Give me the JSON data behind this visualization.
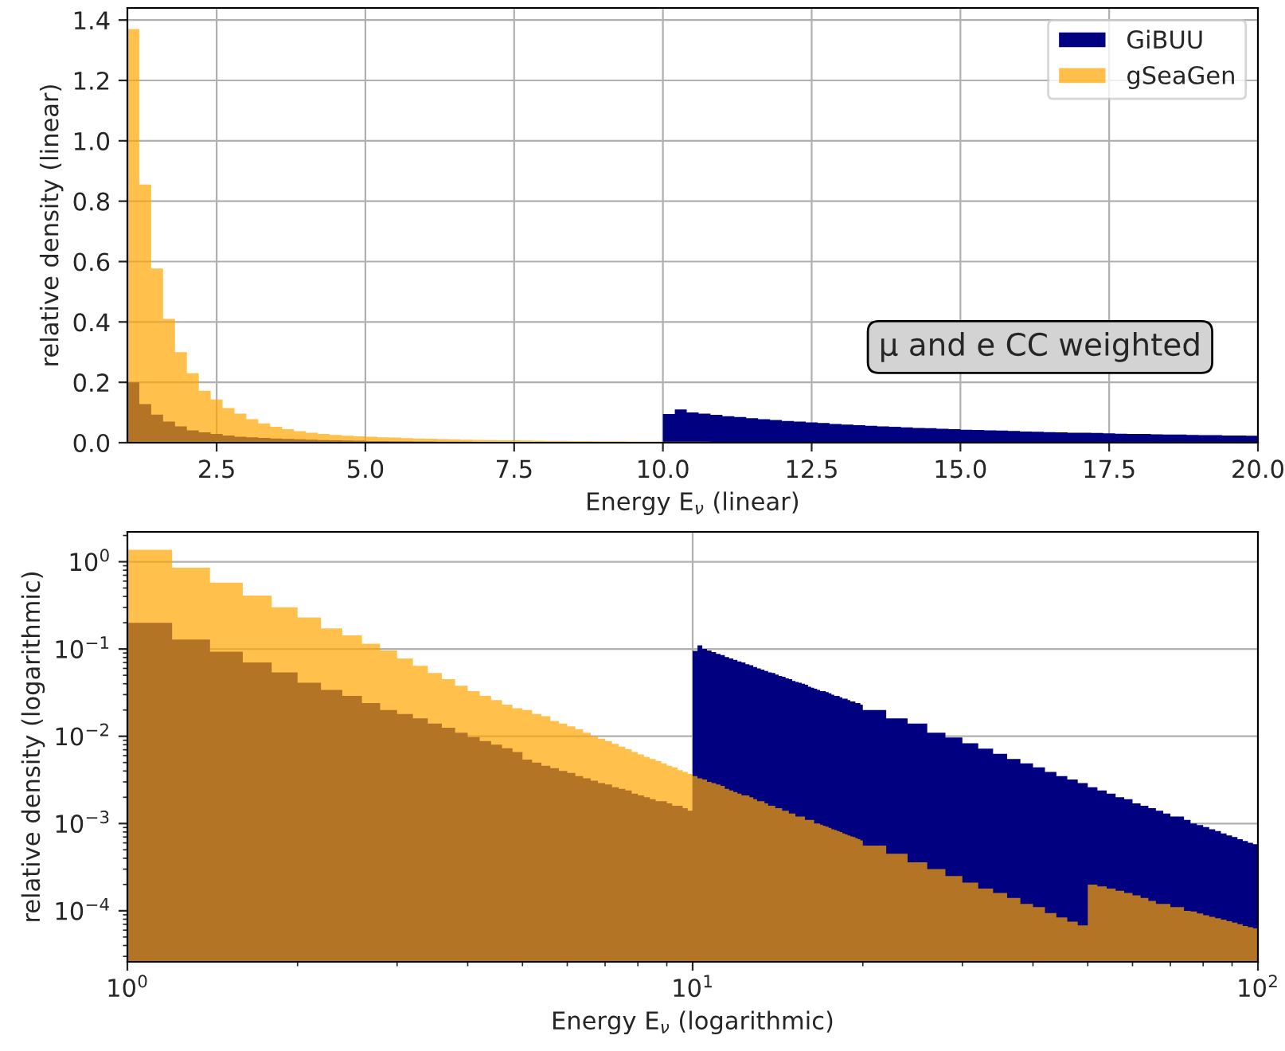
{
  "chart_data": [
    {
      "type": "histogram",
      "xlabel": "Energy E$_{ν}$ (linear)",
      "ylabel": "relative density (linear)",
      "annotations": [
        "μ and e CC weighted"
      ],
      "xlim": [
        1,
        20
      ],
      "ylim": [
        0,
        1.44
      ],
      "xticks": [
        {
          "value": 2.5,
          "label": "2.5"
        },
        {
          "value": 5,
          "label": "5.0"
        },
        {
          "value": 7.5,
          "label": "7.5"
        },
        {
          "value": 10,
          "label": "10.0"
        },
        {
          "value": 12.5,
          "label": "12.5"
        },
        {
          "value": 15,
          "label": "15.0"
        },
        {
          "value": 17.5,
          "label": "17.5"
        },
        {
          "value": 20,
          "label": "20.0"
        }
      ],
      "yticks": [
        {
          "value": 0,
          "label": "0.0"
        },
        {
          "value": 0.2,
          "label": "0.2"
        },
        {
          "value": 0.4,
          "label": "0.4"
        },
        {
          "value": 0.6,
          "label": "0.6"
        },
        {
          "value": 0.8,
          "label": "0.8"
        },
        {
          "value": 1,
          "label": "1.0"
        },
        {
          "value": 1.2,
          "label": "1.2"
        },
        {
          "value": 1.4,
          "label": "1.4"
        }
      ],
      "grid": true,
      "legend": "top right",
      "bins": [
        1.0,
        1.2,
        1.4,
        1.6,
        1.8,
        2.0,
        2.2,
        2.4,
        2.6,
        2.8,
        3.0,
        3.2,
        3.4,
        3.6,
        3.8,
        4.0,
        4.2,
        4.4,
        4.6,
        4.8,
        5.0,
        5.2,
        5.4,
        5.6,
        5.8,
        6.0,
        6.2,
        6.4,
        6.6,
        6.8,
        7.0,
        7.2,
        7.4,
        7.6,
        7.8,
        8.0,
        8.2,
        8.4,
        8.6,
        8.8,
        9.0,
        9.2,
        9.4,
        9.6,
        9.8,
        10.0,
        10.2,
        10.4,
        10.6,
        10.8,
        11.0,
        11.2,
        11.4,
        11.6,
        11.8,
        12.0,
        12.2,
        12.4,
        12.6,
        12.8,
        13.0,
        13.2,
        13.4,
        13.6,
        13.8,
        14.0,
        14.2,
        14.4,
        14.6,
        14.8,
        15.0,
        15.2,
        15.4,
        15.6,
        15.8,
        16.0,
        16.2,
        16.4,
        16.6,
        16.8,
        17.0,
        17.2,
        17.4,
        17.6,
        17.8,
        18.0,
        18.2,
        18.4,
        18.6,
        18.8,
        19.0,
        19.2,
        19.4,
        19.6,
        19.8,
        20.0,
        22,
        24,
        26,
        28,
        30,
        32,
        34,
        36,
        38,
        40,
        42,
        44,
        46,
        48,
        50,
        52,
        54,
        56,
        58,
        60,
        62,
        64,
        66,
        68,
        70,
        72,
        74,
        76,
        78,
        80,
        82,
        84,
        86,
        88,
        90,
        92,
        94,
        96,
        98,
        100
      ],
      "series": [
        {
          "name": "GiBUU",
          "color": "#000080",
          "values": [
            0.2,
            0.128,
            0.093,
            0.07,
            0.054,
            0.041,
            0.034,
            0.029,
            0.024,
            0.02,
            0.018,
            0.016,
            0.014,
            0.0125,
            0.011,
            0.0098,
            0.0088,
            0.008,
            0.0073,
            0.0066,
            0.0054,
            0.005,
            0.0046,
            0.0043,
            0.004,
            0.0038,
            0.0035,
            0.0033,
            0.0031,
            0.0029,
            0.0028,
            0.0026,
            0.0025,
            0.0024,
            0.0022,
            0.0021,
            0.002,
            0.0019,
            0.0018,
            0.0018,
            0.0017,
            0.0016,
            0.0016,
            0.0015,
            0.0014,
            0.095,
            0.11,
            0.1,
            0.096,
            0.092,
            0.088,
            0.085,
            0.081,
            0.078,
            0.075,
            0.072,
            0.07,
            0.067,
            0.065,
            0.062,
            0.06,
            0.058,
            0.056,
            0.054,
            0.053,
            0.051,
            0.049,
            0.048,
            0.046,
            0.045,
            0.043,
            0.042,
            0.041,
            0.04,
            0.039,
            0.037,
            0.036,
            0.035,
            0.034,
            0.033,
            0.033,
            0.032,
            0.031,
            0.03,
            0.029,
            0.029,
            0.028,
            0.027,
            0.027,
            0.026,
            0.025,
            0.025,
            0.024,
            0.024,
            0.023,
            0.02,
            0.016,
            0.014,
            0.011,
            0.0097,
            0.0083,
            0.0072,
            0.0063,
            0.0055,
            0.0049,
            0.0044,
            0.0039,
            0.0035,
            0.0032,
            0.0029,
            0.0026,
            0.0024,
            0.0022,
            0.002,
            0.0019,
            0.0017,
            0.0016,
            0.0015,
            0.0014,
            0.0013,
            0.0012,
            0.0012,
            0.0011,
            0.001,
            0.00096,
            0.00091,
            0.00086,
            0.00082,
            0.00077,
            0.00073,
            0.0007,
            0.00066,
            0.00063,
            0.0006,
            0.00058
          ]
        },
        {
          "name": "gSeaGen",
          "color": "#ffa500",
          "values": [
            1.37,
            0.855,
            0.577,
            0.41,
            0.3,
            0.23,
            0.172,
            0.143,
            0.115,
            0.096,
            0.078,
            0.064,
            0.053,
            0.045,
            0.038,
            0.033,
            0.029,
            0.026,
            0.023,
            0.021,
            0.02,
            0.018,
            0.017,
            0.015,
            0.014,
            0.013,
            0.012,
            0.011,
            0.01,
            0.0094,
            0.0088,
            0.0082,
            0.0076,
            0.0071,
            0.0066,
            0.0062,
            0.0058,
            0.0055,
            0.0052,
            0.0049,
            0.0046,
            0.0044,
            0.0041,
            0.0039,
            0.0037,
            0.0035,
            0.0033,
            0.0032,
            0.003,
            0.0029,
            0.0028,
            0.0027,
            0.0025,
            0.0024,
            0.0023,
            0.0022,
            0.0021,
            0.0021,
            0.002,
            0.0019,
            0.0018,
            0.0018,
            0.0017,
            0.0016,
            0.0016,
            0.0015,
            0.0015,
            0.0014,
            0.0014,
            0.0013,
            0.0013,
            0.0012,
            0.0012,
            0.0012,
            0.0011,
            0.0011,
            0.0011,
            0.001,
            0.001,
            0.00097,
            0.00094,
            0.00092,
            0.00089,
            0.00086,
            0.00084,
            0.00082,
            0.0008,
            0.00077,
            0.00075,
            0.00073,
            0.00071,
            0.0007,
            0.00068,
            0.00066,
            0.00064,
            0.00056,
            0.00045,
            0.00036,
            0.0003,
            0.00025,
            0.00021,
            0.00018,
            0.00016,
            0.00014,
            0.00012,
            0.00011,
            9.4e-05,
            8.4e-05,
            7.5e-05,
            6.8e-05,
            0.0002,
            0.00019,
            0.00018,
            0.00017,
            0.00016,
            0.00015,
            0.00014,
            0.00013,
            0.00012,
            0.00012,
            0.00011,
            0.00011,
            0.0001,
            9.8e-05,
            9.3e-05,
            8.9e-05,
            8.5e-05,
            8.2e-05,
            7.9e-05,
            7.6e-05,
            7.3e-05,
            7e-05,
            6.7e-05,
            6.5e-05,
            6.3e-05
          ]
        }
      ]
    },
    {
      "type": "histogram",
      "xlabel": "Energy E$_{ν}$ (logarithmic)",
      "ylabel": "relative density (logarithmic)",
      "log": "xy",
      "xlim": [
        1,
        100
      ],
      "ylim": [
        2.6e-05,
        2.2
      ],
      "xticks": [
        {
          "value": 1,
          "label": "10$^{0}$"
        },
        {
          "value": 10,
          "label": "10$^{1}$"
        },
        {
          "value": 100,
          "label": "10$^{2}$"
        }
      ],
      "yticks": [
        {
          "value": 0.0001,
          "label": "10$^{−4}$"
        },
        {
          "value": 0.001,
          "label": "10$^{−3}$"
        },
        {
          "value": 0.01,
          "label": "10$^{−2}$"
        },
        {
          "value": 0.1,
          "label": "10$^{−1}$"
        },
        {
          "value": 1,
          "label": "10$^{0}$"
        }
      ],
      "grid": true,
      "bins": [
        1.0,
        1.2,
        1.4,
        1.6,
        1.8,
        2.0,
        2.2,
        2.4,
        2.6,
        2.8,
        3.0,
        3.2,
        3.4,
        3.6,
        3.8,
        4.0,
        4.2,
        4.4,
        4.6,
        4.8,
        5.0,
        5.2,
        5.4,
        5.6,
        5.8,
        6.0,
        6.2,
        6.4,
        6.6,
        6.8,
        7.0,
        7.2,
        7.4,
        7.6,
        7.8,
        8.0,
        8.2,
        8.4,
        8.6,
        8.8,
        9.0,
        9.2,
        9.4,
        9.6,
        9.8,
        10.0,
        10.2,
        10.4,
        10.6,
        10.8,
        11.0,
        11.2,
        11.4,
        11.6,
        11.8,
        12.0,
        12.2,
        12.4,
        12.6,
        12.8,
        13.0,
        13.2,
        13.4,
        13.6,
        13.8,
        14.0,
        14.2,
        14.4,
        14.6,
        14.8,
        15.0,
        15.2,
        15.4,
        15.6,
        15.8,
        16.0,
        16.2,
        16.4,
        16.6,
        16.8,
        17.0,
        17.2,
        17.4,
        17.6,
        17.8,
        18.0,
        18.2,
        18.4,
        18.6,
        18.8,
        19.0,
        19.2,
        19.4,
        19.6,
        19.8,
        20.0,
        22,
        24,
        26,
        28,
        30,
        32,
        34,
        36,
        38,
        40,
        42,
        44,
        46,
        48,
        50,
        52,
        54,
        56,
        58,
        60,
        62,
        64,
        66,
        68,
        70,
        72,
        74,
        76,
        78,
        80,
        82,
        84,
        86,
        88,
        90,
        92,
        94,
        96,
        98,
        100
      ],
      "series": [
        {
          "color": "#000080",
          "values": [
            0.2,
            0.128,
            0.093,
            0.07,
            0.054,
            0.041,
            0.034,
            0.029,
            0.024,
            0.02,
            0.018,
            0.016,
            0.014,
            0.0125,
            0.011,
            0.0098,
            0.0088,
            0.008,
            0.0073,
            0.0066,
            0.0054,
            0.005,
            0.0046,
            0.0043,
            0.004,
            0.0038,
            0.0035,
            0.0033,
            0.0031,
            0.0029,
            0.0028,
            0.0026,
            0.0025,
            0.0024,
            0.0022,
            0.0021,
            0.002,
            0.0019,
            0.0018,
            0.0018,
            0.0017,
            0.0016,
            0.0016,
            0.0015,
            0.0014,
            0.095,
            0.11,
            0.1,
            0.096,
            0.092,
            0.088,
            0.085,
            0.081,
            0.078,
            0.075,
            0.072,
            0.07,
            0.067,
            0.065,
            0.062,
            0.06,
            0.058,
            0.056,
            0.054,
            0.053,
            0.051,
            0.049,
            0.048,
            0.046,
            0.045,
            0.043,
            0.042,
            0.041,
            0.04,
            0.039,
            0.037,
            0.036,
            0.035,
            0.034,
            0.033,
            0.033,
            0.032,
            0.031,
            0.03,
            0.029,
            0.029,
            0.028,
            0.027,
            0.027,
            0.026,
            0.025,
            0.025,
            0.024,
            0.024,
            0.023,
            0.02,
            0.016,
            0.014,
            0.011,
            0.0097,
            0.0083,
            0.0072,
            0.0063,
            0.0055,
            0.0049,
            0.0044,
            0.0039,
            0.0035,
            0.0032,
            0.0029,
            0.0026,
            0.0024,
            0.0022,
            0.002,
            0.0019,
            0.0017,
            0.0016,
            0.0015,
            0.0014,
            0.0013,
            0.0012,
            0.0012,
            0.0011,
            0.001,
            0.00096,
            0.00091,
            0.00086,
            0.00082,
            0.00077,
            0.00073,
            0.0007,
            0.00066,
            0.00063,
            0.0006,
            0.00058
          ]
        },
        {
          "color": "#ffa500",
          "values": [
            1.37,
            0.855,
            0.577,
            0.41,
            0.3,
            0.23,
            0.172,
            0.143,
            0.115,
            0.096,
            0.078,
            0.064,
            0.053,
            0.045,
            0.038,
            0.033,
            0.029,
            0.026,
            0.023,
            0.021,
            0.02,
            0.018,
            0.017,
            0.015,
            0.014,
            0.013,
            0.012,
            0.011,
            0.01,
            0.0094,
            0.0088,
            0.0082,
            0.0076,
            0.0071,
            0.0066,
            0.0062,
            0.0058,
            0.0055,
            0.0052,
            0.0049,
            0.0046,
            0.0044,
            0.0041,
            0.0039,
            0.0037,
            0.0035,
            0.0033,
            0.0032,
            0.003,
            0.0029,
            0.0028,
            0.0027,
            0.0025,
            0.0024,
            0.0023,
            0.0022,
            0.0021,
            0.0021,
            0.002,
            0.0019,
            0.0018,
            0.0018,
            0.0017,
            0.0016,
            0.0016,
            0.0015,
            0.0015,
            0.0014,
            0.0014,
            0.0013,
            0.0013,
            0.0012,
            0.0012,
            0.0012,
            0.0011,
            0.0011,
            0.0011,
            0.001,
            0.001,
            0.00097,
            0.00094,
            0.00092,
            0.00089,
            0.00086,
            0.00084,
            0.00082,
            0.0008,
            0.00077,
            0.00075,
            0.00073,
            0.00071,
            0.0007,
            0.00068,
            0.00066,
            0.00064,
            0.00056,
            0.00045,
            0.00036,
            0.0003,
            0.00025,
            0.00021,
            0.00018,
            0.00016,
            0.00014,
            0.00012,
            0.00011,
            9.4e-05,
            8.4e-05,
            7.5e-05,
            6.8e-05,
            0.0002,
            0.00019,
            0.00018,
            0.00017,
            0.00016,
            0.00015,
            0.00014,
            0.00013,
            0.00012,
            0.00012,
            0.00011,
            0.00011,
            0.0001,
            9.8e-05,
            9.3e-05,
            8.9e-05,
            8.5e-05,
            8.2e-05,
            7.9e-05,
            7.6e-05,
            7.3e-05,
            7e-05,
            6.7e-05,
            6.5e-05,
            6.3e-05
          ]
        }
      ]
    }
  ]
}
